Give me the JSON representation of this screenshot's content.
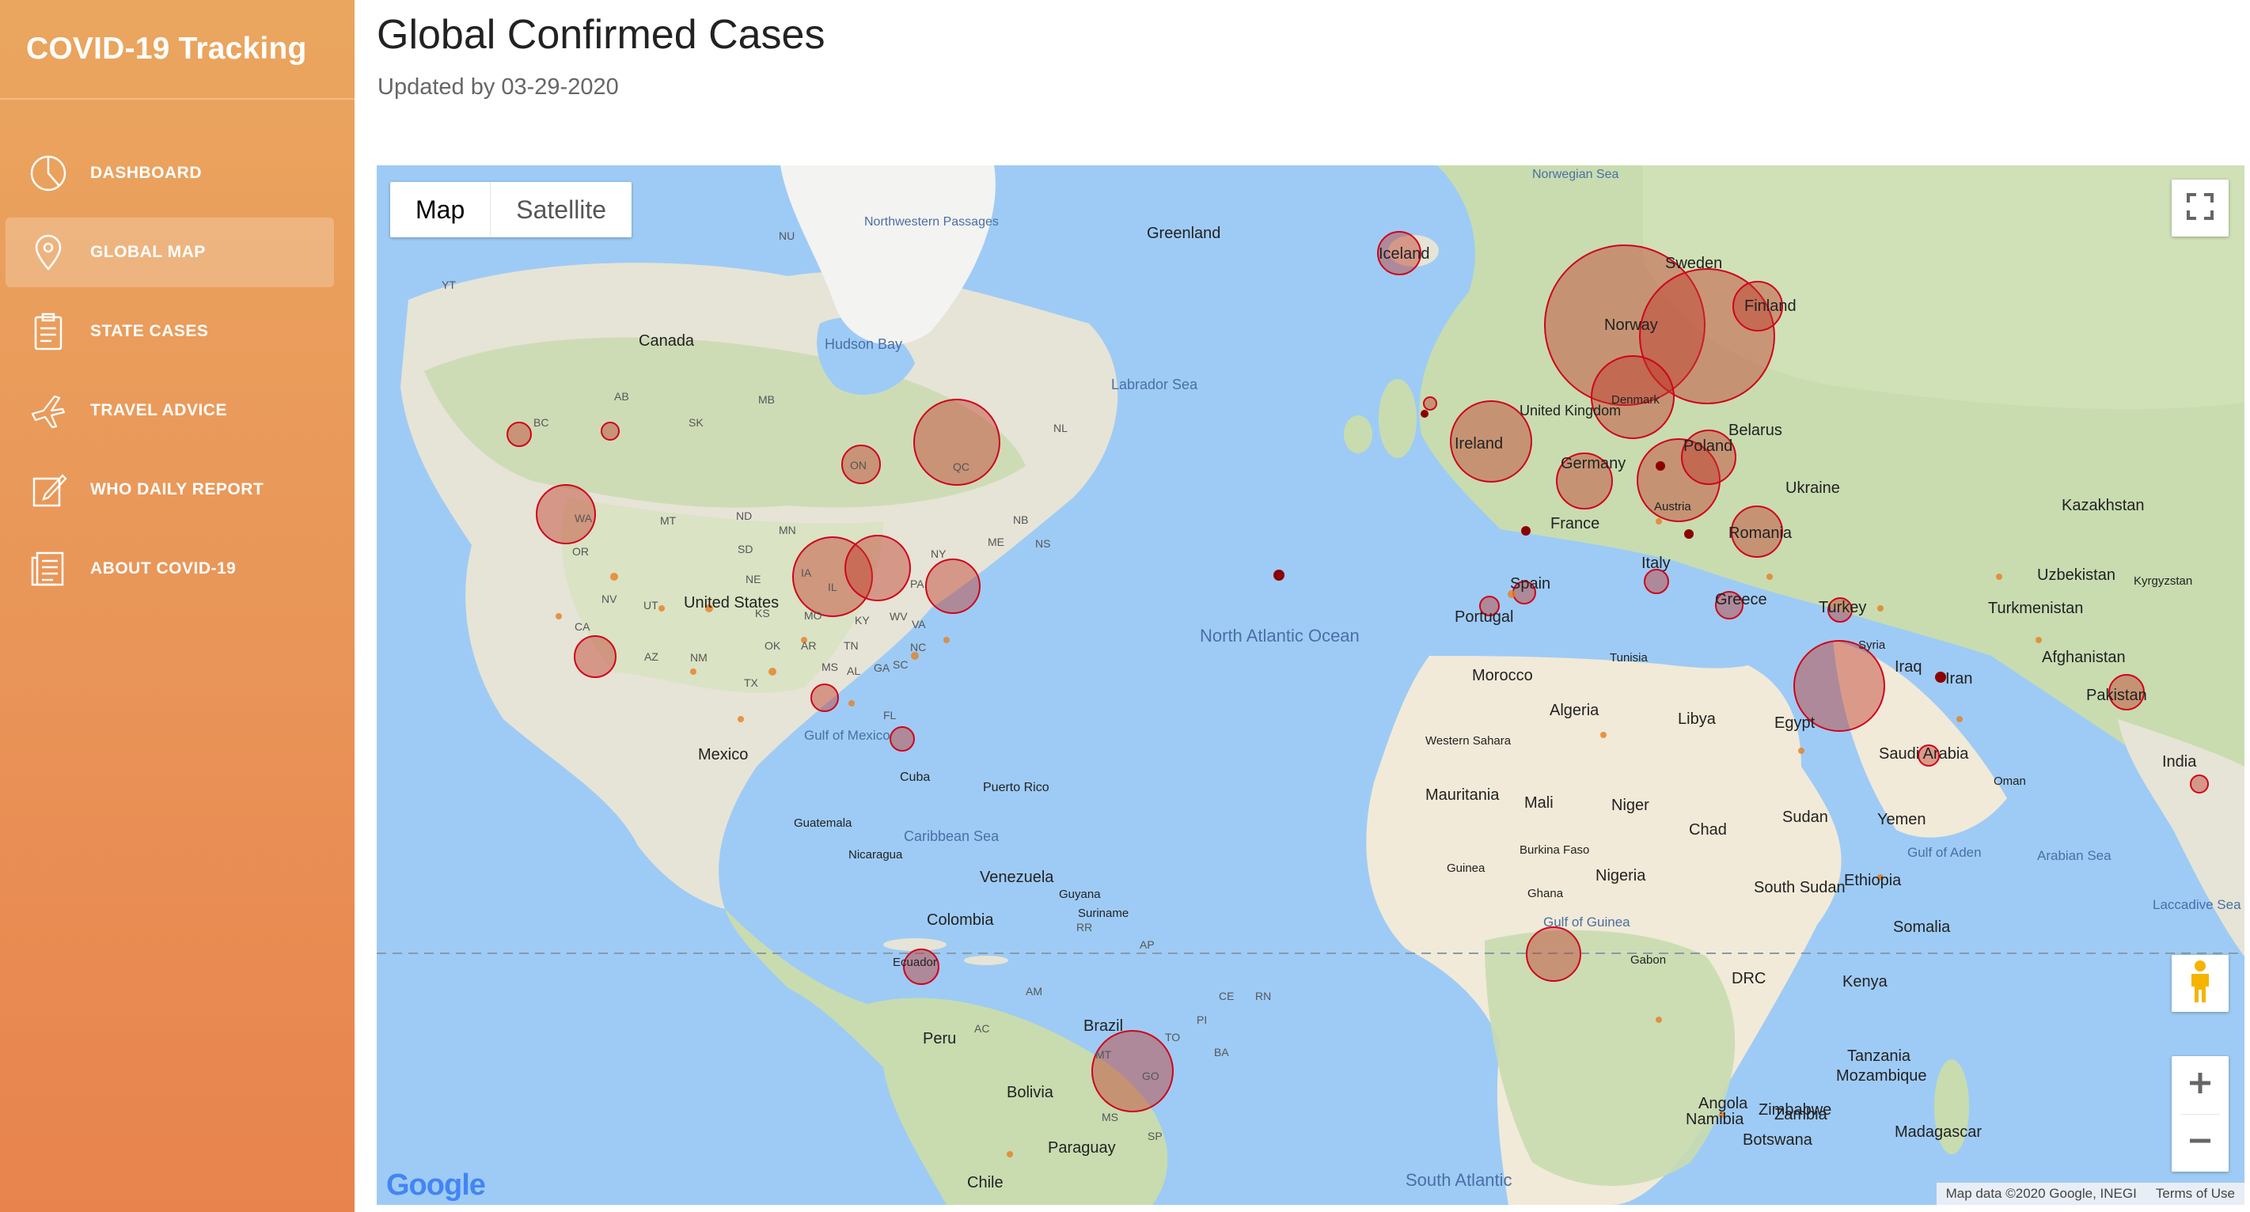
{
  "app": {
    "title": "COVID-19 Tracking"
  },
  "sidebar": {
    "items": [
      {
        "label": "DASHBOARD",
        "icon": "pie-chart-icon"
      },
      {
        "label": "GLOBAL MAP",
        "icon": "map-pin-icon",
        "active": true
      },
      {
        "label": "STATE CASES",
        "icon": "clipboard-icon"
      },
      {
        "label": "TRAVEL ADVICE",
        "icon": "airplane-icon"
      },
      {
        "label": "WHO DAILY REPORT",
        "icon": "edit-note-icon"
      },
      {
        "label": "ABOUT COVID-19",
        "icon": "document-list-icon"
      }
    ]
  },
  "header": {
    "title": "Global Confirmed Cases",
    "updated": "Updated by 03-29-2020"
  },
  "map": {
    "type_buttons": {
      "map": "Map",
      "satellite": "Satellite"
    },
    "selected_type": "Map",
    "google_logo": "Google",
    "attribution": "Map data ©2020 Google, INEGI",
    "terms": "Terms of Use",
    "colors": {
      "water": "#9ecbf5",
      "land": "#e9e5d8",
      "green": "#c8dcb0",
      "bubble": "#c0392b"
    },
    "labels": {
      "countries": [
        "Canada",
        "United States",
        "Mexico",
        "Cuba",
        "Puerto Rico",
        "Guatemala",
        "Nicaragua",
        "Venezuela",
        "Guyana",
        "Suriname",
        "Colombia",
        "Ecuador",
        "Peru",
        "Brazil",
        "Bolivia",
        "Paraguay",
        "Chile",
        "Greenland",
        "Iceland",
        "Ireland",
        "United Kingdom",
        "Norway",
        "Sweden",
        "Finland",
        "Denmark",
        "Germany",
        "Poland",
        "Belarus",
        "Ukraine",
        "Austria",
        "France",
        "Spain",
        "Portugal",
        "Italy",
        "Romania",
        "Greece",
        "Turkey",
        "Syria",
        "Iraq",
        "Iran",
        "Kazakhstan",
        "Uzbekistan",
        "Kyrgyzstan",
        "Turkmenistan",
        "Afghanistan",
        "Pakistan",
        "India",
        "Saudi Arabia",
        "Oman",
        "Yemen",
        "Egypt",
        "Libya",
        "Tunisia",
        "Algeria",
        "Morocco",
        "Western Sahara",
        "Mauritania",
        "Mali",
        "Niger",
        "Chad",
        "Sudan",
        "South Sudan",
        "Ethiopia",
        "Somalia",
        "Kenya",
        "Nigeria",
        "Burkina Faso",
        "Guinea",
        "Ghana",
        "Gabon",
        "DRC",
        "Tanzania",
        "Angola",
        "Zambia",
        "Mozambique",
        "Namibia",
        "Zimbabwe",
        "Botswana",
        "Madagascar"
      ],
      "water": [
        "Norwegian Sea",
        "Northwestern Passages",
        "Hudson Bay",
        "Labrador Sea",
        "North Atlantic Ocean",
        "Gulf of Mexico",
        "Caribbean Sea",
        "Gulf of Guinea",
        "Gulf of Aden",
        "Arabian Sea",
        "Laccadive Sea",
        "South Atlantic"
      ],
      "states": [
        "NU",
        "YT",
        "BC",
        "AB",
        "SK",
        "MB",
        "ON",
        "QC",
        "NL",
        "NB",
        "WA",
        "OR",
        "CA",
        "NV",
        "UT",
        "AZ",
        "NM",
        "MT",
        "ND",
        "SD",
        "NE",
        "KS",
        "OK",
        "TX",
        "MN",
        "IA",
        "IL",
        "MO",
        "AR",
        "MS",
        "AL",
        "GA",
        "FL",
        "SC",
        "NC",
        "VA",
        "WV",
        "KY",
        "TN",
        "PA",
        "NY",
        "ME",
        "NS",
        "AM",
        "AC",
        "MT",
        "GO",
        "MS",
        "SP",
        "BA",
        "TO",
        "PI",
        "CE",
        "RN",
        "AP",
        "RR"
      ]
    }
  }
}
